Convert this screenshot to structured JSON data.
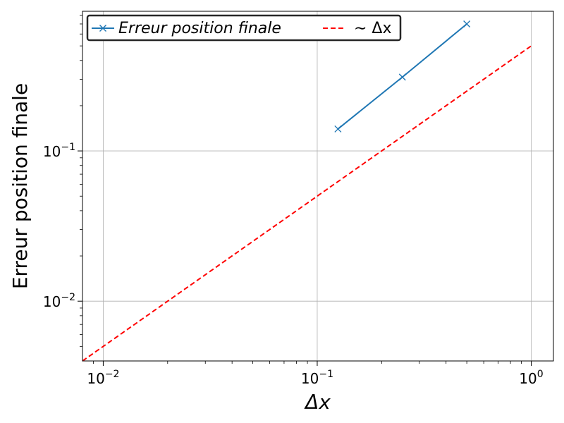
{
  "chart_data": {
    "type": "line",
    "xscale": "log",
    "yscale": "log",
    "xlim": [
      0.008,
      1.27
    ],
    "ylim": [
      0.004,
      0.85
    ],
    "xlabel": "Δx",
    "ylabel": "Erreur position finale",
    "grid": true,
    "legend_position": "top-left",
    "x_major_ticks": [
      0.01,
      0.1,
      1
    ],
    "x_tick_labels": [
      {
        "base": "10",
        "exp": "−2"
      },
      {
        "base": "10",
        "exp": "−1"
      },
      {
        "base": "10",
        "exp": "0"
      }
    ],
    "y_major_ticks": [
      0.01,
      0.1
    ],
    "y_tick_labels": [
      {
        "base": "10",
        "exp": "−2"
      },
      {
        "base": "10",
        "exp": "−1"
      }
    ],
    "series": [
      {
        "name": "Erreur position finale",
        "color": "#1f77b4",
        "style": "solid",
        "marker": "x",
        "x": [
          0.125,
          0.25,
          0.5
        ],
        "y": [
          0.14,
          0.31,
          0.7
        ]
      },
      {
        "name": "∼ Δx",
        "color": "#ff0000",
        "style": "dashed",
        "marker": "none",
        "x": [
          0.008,
          1.0
        ],
        "y": [
          0.004,
          0.5
        ]
      }
    ]
  }
}
